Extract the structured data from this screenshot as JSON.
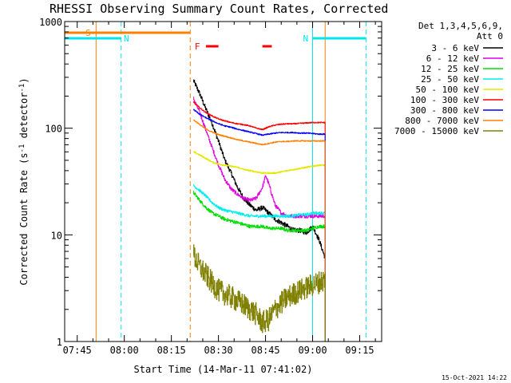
{
  "chart_data": {
    "type": "line",
    "title": "RHESSI Observing Summary Count Rates, Corrected",
    "xlabel": "Start Time (14-Mar-11 07:41:02)",
    "ylabel": "Corrected Count Rate (s-1 detector-1)",
    "ylabel_parts": {
      "main": "Corrected Count Rate (s",
      "sup1": "-1",
      "mid": " detector",
      "sup2": "-1",
      "end": ")"
    },
    "yscale": "log",
    "ylim": [
      1,
      1000
    ],
    "xlim": [
      "07:41",
      "09:22"
    ],
    "x_ticks": [
      "07:45",
      "08:00",
      "08:15",
      "08:30",
      "08:45",
      "09:00",
      "09:15"
    ],
    "y_ticks": [
      "1",
      "10",
      "100",
      "1000"
    ],
    "timestamp": "15-Oct-2021 14:22",
    "legend": {
      "header1": "Det 1,3,4,5,6,9,",
      "header2": "Att 0",
      "placement": "top-right outside"
    },
    "flags": [
      {
        "label": "S",
        "start": "07:41",
        "end": "08:21",
        "color": "#ff8000"
      },
      {
        "label": "N",
        "start": "07:41",
        "end": "07:59",
        "color": "#00e5ee"
      },
      {
        "label": "N",
        "start": "09:00",
        "end": "09:17",
        "color": "#00e5ee"
      },
      {
        "label": "F",
        "start": "08:26",
        "end": "08:30",
        "color": "#ff0000"
      },
      {
        "label": "",
        "start": "08:44",
        "end": "08:47",
        "color": "#ff0000"
      }
    ],
    "vlines": [
      {
        "time": "07:41",
        "color": "#00e5ee",
        "style": "solid"
      },
      {
        "time": "07:51",
        "color": "#ff8000",
        "style": "solid"
      },
      {
        "time": "07:59",
        "color": "#00e5ee",
        "style": "dashed"
      },
      {
        "time": "08:21",
        "color": "#ff8000",
        "style": "dashed"
      },
      {
        "time": "09:00",
        "color": "#00e5ee",
        "style": "solid"
      },
      {
        "time": "09:04",
        "color": "#ff8000",
        "style": "solid"
      },
      {
        "time": "09:17",
        "color": "#00e5ee",
        "style": "dashed"
      }
    ],
    "data_window": [
      "08:22",
      "09:04"
    ],
    "series": [
      {
        "name": "3 - 6 keV",
        "color": "#000000",
        "noise": 0.05,
        "points": [
          [
            "08:22",
            280
          ],
          [
            "08:24",
            210
          ],
          [
            "08:26",
            150
          ],
          [
            "08:28",
            110
          ],
          [
            "08:30",
            75
          ],
          [
            "08:32",
            50
          ],
          [
            "08:34",
            38
          ],
          [
            "08:36",
            28
          ],
          [
            "08:38",
            22
          ],
          [
            "08:40",
            19
          ],
          [
            "08:42",
            17
          ],
          [
            "08:44",
            18
          ],
          [
            "08:46",
            16
          ],
          [
            "08:48",
            14
          ],
          [
            "08:50",
            13
          ],
          [
            "08:52",
            12
          ],
          [
            "08:54",
            11
          ],
          [
            "08:56",
            11
          ],
          [
            "08:58",
            10.5
          ],
          [
            "09:00",
            12
          ],
          [
            "09:02",
            9
          ],
          [
            "09:04",
            6
          ]
        ]
      },
      {
        "name": "6 - 12 keV",
        "color": "#e000e0",
        "noise": 0.04,
        "points": [
          [
            "08:22",
            190
          ],
          [
            "08:24",
            140
          ],
          [
            "08:26",
            95
          ],
          [
            "08:28",
            65
          ],
          [
            "08:30",
            45
          ],
          [
            "08:32",
            33
          ],
          [
            "08:34",
            27
          ],
          [
            "08:36",
            24
          ],
          [
            "08:38",
            22
          ],
          [
            "08:40",
            21
          ],
          [
            "08:42",
            22
          ],
          [
            "08:44",
            28
          ],
          [
            "08:45",
            36
          ],
          [
            "08:46",
            30
          ],
          [
            "08:48",
            19
          ],
          [
            "08:50",
            16
          ],
          [
            "08:52",
            15
          ],
          [
            "08:54",
            15
          ],
          [
            "08:56",
            15
          ],
          [
            "08:58",
            15
          ],
          [
            "09:00",
            15
          ],
          [
            "09:02",
            15
          ],
          [
            "09:04",
            15
          ]
        ]
      },
      {
        "name": "12 - 25 keV",
        "color": "#00dd00",
        "noise": 0.035,
        "points": [
          [
            "08:22",
            25
          ],
          [
            "08:24",
            21
          ],
          [
            "08:26",
            18
          ],
          [
            "08:28",
            16
          ],
          [
            "08:30",
            15
          ],
          [
            "08:32",
            14
          ],
          [
            "08:34",
            13.5
          ],
          [
            "08:36",
            13
          ],
          [
            "08:38",
            12.5
          ],
          [
            "08:40",
            12
          ],
          [
            "08:42",
            12
          ],
          [
            "08:44",
            12
          ],
          [
            "08:46",
            11.5
          ],
          [
            "08:48",
            11.5
          ],
          [
            "08:50",
            11.5
          ],
          [
            "08:52",
            11
          ],
          [
            "08:54",
            11
          ],
          [
            "08:56",
            11
          ],
          [
            "08:58",
            11
          ],
          [
            "09:00",
            11.5
          ],
          [
            "09:02",
            12
          ],
          [
            "09:04",
            12
          ]
        ]
      },
      {
        "name": "25 - 50 keV",
        "color": "#00eeee",
        "noise": 0.03,
        "points": [
          [
            "08:22",
            29
          ],
          [
            "08:24",
            26
          ],
          [
            "08:26",
            23
          ],
          [
            "08:28",
            20
          ],
          [
            "08:30",
            18
          ],
          [
            "08:32",
            17
          ],
          [
            "08:34",
            16.5
          ],
          [
            "08:36",
            16
          ],
          [
            "08:38",
            15.5
          ],
          [
            "08:40",
            15
          ],
          [
            "08:42",
            15
          ],
          [
            "08:44",
            15
          ],
          [
            "08:46",
            15
          ],
          [
            "08:48",
            15
          ],
          [
            "08:50",
            15
          ],
          [
            "08:52",
            15
          ],
          [
            "08:54",
            15
          ],
          [
            "08:56",
            15.5
          ],
          [
            "08:58",
            15.5
          ],
          [
            "09:00",
            16
          ],
          [
            "09:02",
            16
          ],
          [
            "09:04",
            16
          ]
        ]
      },
      {
        "name": "50 - 100 keV",
        "color": "#e6e600",
        "noise": 0.015,
        "points": [
          [
            "08:22",
            60
          ],
          [
            "08:24",
            56
          ],
          [
            "08:26",
            52
          ],
          [
            "08:28",
            48
          ],
          [
            "08:30",
            46
          ],
          [
            "08:32",
            45
          ],
          [
            "08:34",
            44
          ],
          [
            "08:36",
            43
          ],
          [
            "08:38",
            41
          ],
          [
            "08:40",
            40
          ],
          [
            "08:42",
            39
          ],
          [
            "08:44",
            38
          ],
          [
            "08:46",
            38
          ],
          [
            "08:48",
            38
          ],
          [
            "08:50",
            39
          ],
          [
            "08:52",
            40
          ],
          [
            "08:54",
            41
          ],
          [
            "08:56",
            42
          ],
          [
            "08:58",
            43
          ],
          [
            "09:00",
            44
          ],
          [
            "09:02",
            45
          ],
          [
            "09:04",
            45
          ]
        ]
      },
      {
        "name": "100 - 300 keV",
        "color": "#ff0000",
        "noise": 0.012,
        "points": [
          [
            "08:22",
            175
          ],
          [
            "08:24",
            155
          ],
          [
            "08:26",
            140
          ],
          [
            "08:28",
            130
          ],
          [
            "08:30",
            122
          ],
          [
            "08:32",
            117
          ],
          [
            "08:34",
            113
          ],
          [
            "08:36",
            110
          ],
          [
            "08:38",
            108
          ],
          [
            "08:40",
            105
          ],
          [
            "08:42",
            100
          ],
          [
            "08:44",
            97
          ],
          [
            "08:46",
            103
          ],
          [
            "08:48",
            107
          ],
          [
            "08:50",
            109
          ],
          [
            "08:52",
            110
          ],
          [
            "08:54",
            110
          ],
          [
            "08:56",
            111
          ],
          [
            "08:58",
            112
          ],
          [
            "09:00",
            113
          ],
          [
            "09:02",
            113
          ],
          [
            "09:04",
            113
          ]
        ]
      },
      {
        "name": "300 - 800 keV",
        "color": "#0000ff",
        "noise": 0.012,
        "points": [
          [
            "08:22",
            150
          ],
          [
            "08:24",
            135
          ],
          [
            "08:26",
            125
          ],
          [
            "08:28",
            117
          ],
          [
            "08:30",
            110
          ],
          [
            "08:32",
            105
          ],
          [
            "08:34",
            102
          ],
          [
            "08:36",
            98
          ],
          [
            "08:38",
            95
          ],
          [
            "08:40",
            92
          ],
          [
            "08:42",
            89
          ],
          [
            "08:44",
            86
          ],
          [
            "08:46",
            88
          ],
          [
            "08:48",
            90
          ],
          [
            "08:50",
            91
          ],
          [
            "08:52",
            91
          ],
          [
            "08:54",
            91
          ],
          [
            "08:56",
            90
          ],
          [
            "08:58",
            90
          ],
          [
            "09:00",
            89
          ],
          [
            "09:02",
            88
          ],
          [
            "09:04",
            88
          ]
        ]
      },
      {
        "name": "800 - 7000 keV",
        "color": "#ff8000",
        "noise": 0.012,
        "points": [
          [
            "08:22",
            120
          ],
          [
            "08:24",
            108
          ],
          [
            "08:26",
            98
          ],
          [
            "08:28",
            92
          ],
          [
            "08:30",
            87
          ],
          [
            "08:32",
            84
          ],
          [
            "08:34",
            81
          ],
          [
            "08:36",
            78
          ],
          [
            "08:38",
            76
          ],
          [
            "08:40",
            74
          ],
          [
            "08:42",
            72
          ],
          [
            "08:44",
            70
          ],
          [
            "08:46",
            72
          ],
          [
            "08:48",
            74
          ],
          [
            "08:50",
            75
          ],
          [
            "08:52",
            75
          ],
          [
            "08:54",
            76
          ],
          [
            "08:56",
            76
          ],
          [
            "08:58",
            76
          ],
          [
            "09:00",
            76
          ],
          [
            "09:02",
            76
          ],
          [
            "09:04",
            76
          ]
        ]
      },
      {
        "name": "7000 - 15000 keV",
        "color": "#808000",
        "noise": 0.25,
        "points": [
          [
            "08:22",
            6.5
          ],
          [
            "08:24",
            5
          ],
          [
            "08:26",
            4.2
          ],
          [
            "08:28",
            3.5
          ],
          [
            "08:30",
            3
          ],
          [
            "08:32",
            2.8
          ],
          [
            "08:34",
            2.6
          ],
          [
            "08:36",
            2.4
          ],
          [
            "08:38",
            2.2
          ],
          [
            "08:40",
            2
          ],
          [
            "08:42",
            1.8
          ],
          [
            "08:44",
            1.5
          ],
          [
            "08:46",
            1.6
          ],
          [
            "08:48",
            2
          ],
          [
            "08:50",
            2.3
          ],
          [
            "08:52",
            2.6
          ],
          [
            "08:54",
            2.8
          ],
          [
            "08:56",
            3
          ],
          [
            "08:58",
            3.2
          ],
          [
            "09:00",
            3.4
          ],
          [
            "09:02",
            3.6
          ],
          [
            "09:04",
            3.8
          ]
        ]
      }
    ]
  }
}
